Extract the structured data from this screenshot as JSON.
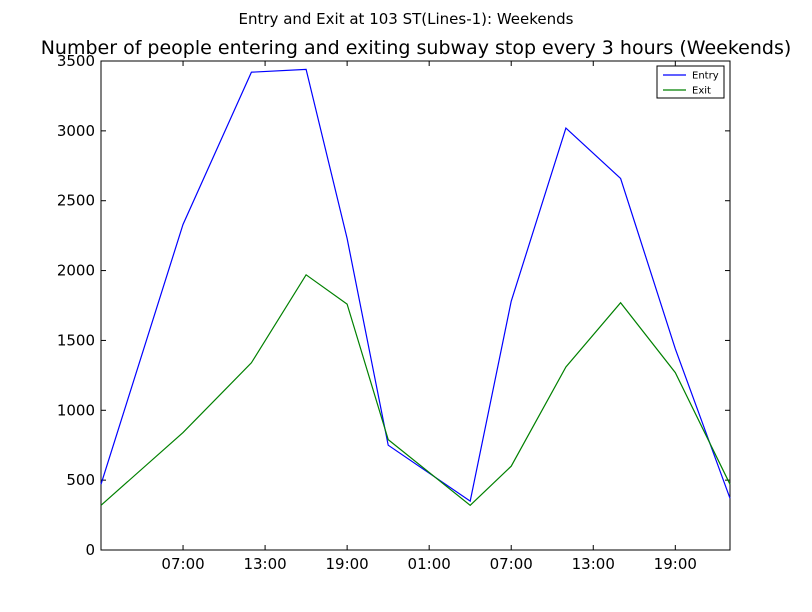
{
  "chart_data": {
    "type": "line",
    "suptitle": "Entry and Exit at 103 ST(Lines-1): Weekends",
    "title": "Number of people entering and exiting subway stop every 3 hours (Weekends)",
    "xlabel": "",
    "ylabel": "",
    "x": [
      "01:00",
      "07:00",
      "12:00",
      "15:00",
      "19:00",
      "22:00",
      "04:00",
      "07:00",
      "11:00",
      "15:00",
      "19:00",
      "23:00"
    ],
    "x_ticks": [
      "07:00",
      "13:00",
      "19:00",
      "01:00",
      "07:00",
      "13:00",
      "19:00"
    ],
    "ylim": [
      0,
      3500
    ],
    "y_ticks": [
      "0",
      "500",
      "1000",
      "1500",
      "2000",
      "2500",
      "3000",
      "3500"
    ],
    "series": [
      {
        "name": "Entry",
        "color": "#0000ff",
        "values": [
          470,
          2330,
          3420,
          3440,
          2230,
          750,
          350,
          1780,
          3020,
          2660,
          1440,
          370
        ]
      },
      {
        "name": "Exit",
        "color": "#008000",
        "values": [
          320,
          840,
          1340,
          1970,
          1760,
          790,
          320,
          600,
          1310,
          1770,
          1270,
          470
        ]
      }
    ],
    "legend_position": "top-right",
    "grid": false
  }
}
